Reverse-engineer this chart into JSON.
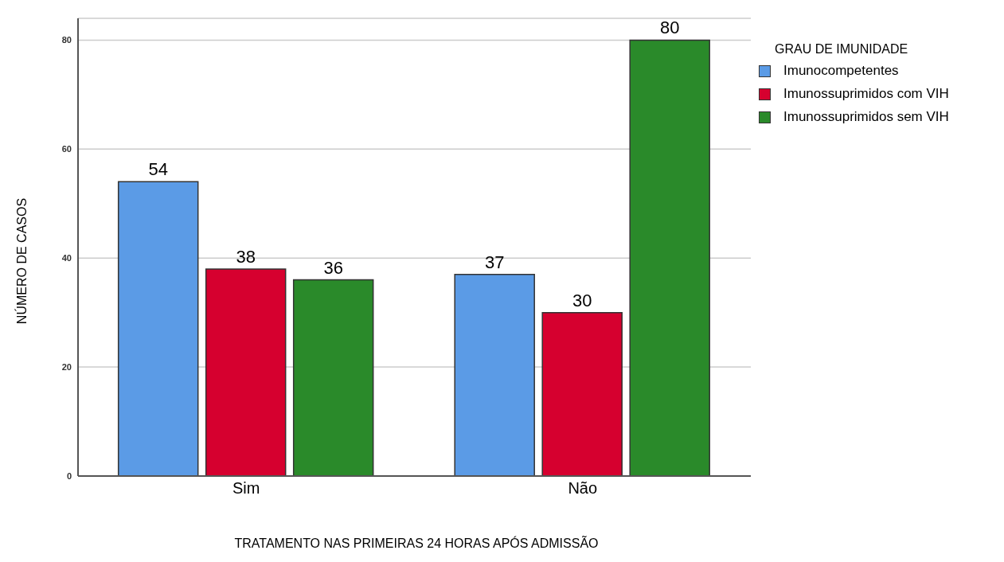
{
  "chart_data": {
    "type": "bar",
    "xlabel": "TRATAMENTO NAS PRIMEIRAS 24 HORAS APÓS ADMISSÃO",
    "ylabel": "NÚMERO DE CASOS",
    "legend_title": "GRAU DE IMUNIDADE",
    "categories": [
      "Sim",
      "Não"
    ],
    "series": [
      {
        "name": "Imunocompetentes",
        "color": "#5b9be6",
        "values": [
          54,
          37
        ]
      },
      {
        "name": "Imunossuprimidos com VIH",
        "color": "#d6002f",
        "values": [
          38,
          30
        ]
      },
      {
        "name": "Imunossuprimidos sem VIH",
        "color": "#2a8a2a",
        "values": [
          36,
          80
        ]
      }
    ],
    "ylim": [
      0,
      84
    ],
    "yticks": [
      0,
      20,
      40,
      60,
      80
    ],
    "grid": "y",
    "legend": "top right",
    "data_labels": true
  }
}
